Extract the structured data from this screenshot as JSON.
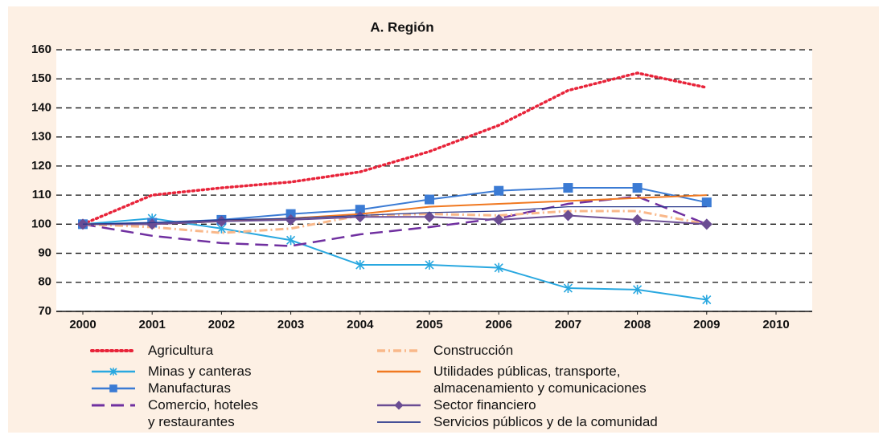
{
  "chart_data": {
    "type": "line",
    "title": "A. Región",
    "x": [
      2000,
      2001,
      2002,
      2003,
      2004,
      2005,
      2006,
      2007,
      2008,
      2009
    ],
    "xlim": [
      2000,
      2010
    ],
    "xticks": [
      2000,
      2001,
      2002,
      2003,
      2004,
      2005,
      2006,
      2007,
      2008,
      2009,
      2010
    ],
    "ylim": [
      70,
      160
    ],
    "yticks": [
      70,
      80,
      90,
      100,
      110,
      120,
      130,
      140,
      150,
      160
    ],
    "grid": true,
    "series": [
      {
        "name": "Agricultura",
        "color": "#e8243a",
        "linestyle": "dotted",
        "marker": "none",
        "values": [
          100,
          110,
          112.5,
          114.5,
          118,
          125,
          134,
          146,
          152,
          147
        ]
      },
      {
        "name": "Minas y canteras",
        "color": "#29a8e0",
        "linestyle": "solid",
        "marker": "asterisk",
        "values": [
          100,
          102,
          98.5,
          94.5,
          86,
          86,
          85,
          78,
          77.5,
          74
        ]
      },
      {
        "name": "Manufacturas",
        "color": "#3b7bd4",
        "linestyle": "solid",
        "marker": "square",
        "values": [
          100,
          100.5,
          101.5,
          103.5,
          105,
          108.5,
          111.5,
          112.5,
          112.5,
          107.5
        ]
      },
      {
        "name": "Comercio, hoteles\ny restaurantes",
        "color": "#7030a0",
        "linestyle": "dashed",
        "marker": "none",
        "values": [
          100,
          96,
          93.5,
          92.5,
          96.5,
          99,
          102,
          107,
          109.5,
          100
        ]
      },
      {
        "name": "Construcción",
        "color": "#f9b88a",
        "linestyle": "dashdot",
        "marker": "none",
        "values": [
          100,
          99,
          97,
          98.5,
          103,
          103.5,
          103,
          104.5,
          104.5,
          100
        ]
      },
      {
        "name": "Utilidades públicas, transporte,\nalmacenamiento y comunicaciones",
        "color": "#f07820",
        "linestyle": "solid",
        "marker": "none",
        "values": [
          100,
          100,
          101,
          102,
          103.5,
          106,
          107,
          108,
          109,
          110
        ]
      },
      {
        "name": "Sector financiero",
        "color": "#6a4c93",
        "linestyle": "solid",
        "marker": "diamond",
        "values": [
          100,
          100,
          101,
          101.5,
          102.5,
          102.5,
          101.5,
          103,
          101.5,
          100
        ]
      },
      {
        "name": "Servicios públicos y de la comunidad",
        "color": "#2b3a8c",
        "linestyle": "thin",
        "marker": "none",
        "values": [
          100,
          100.5,
          101.5,
          102,
          103,
          104,
          104.5,
          106,
          106,
          106
        ]
      }
    ]
  }
}
